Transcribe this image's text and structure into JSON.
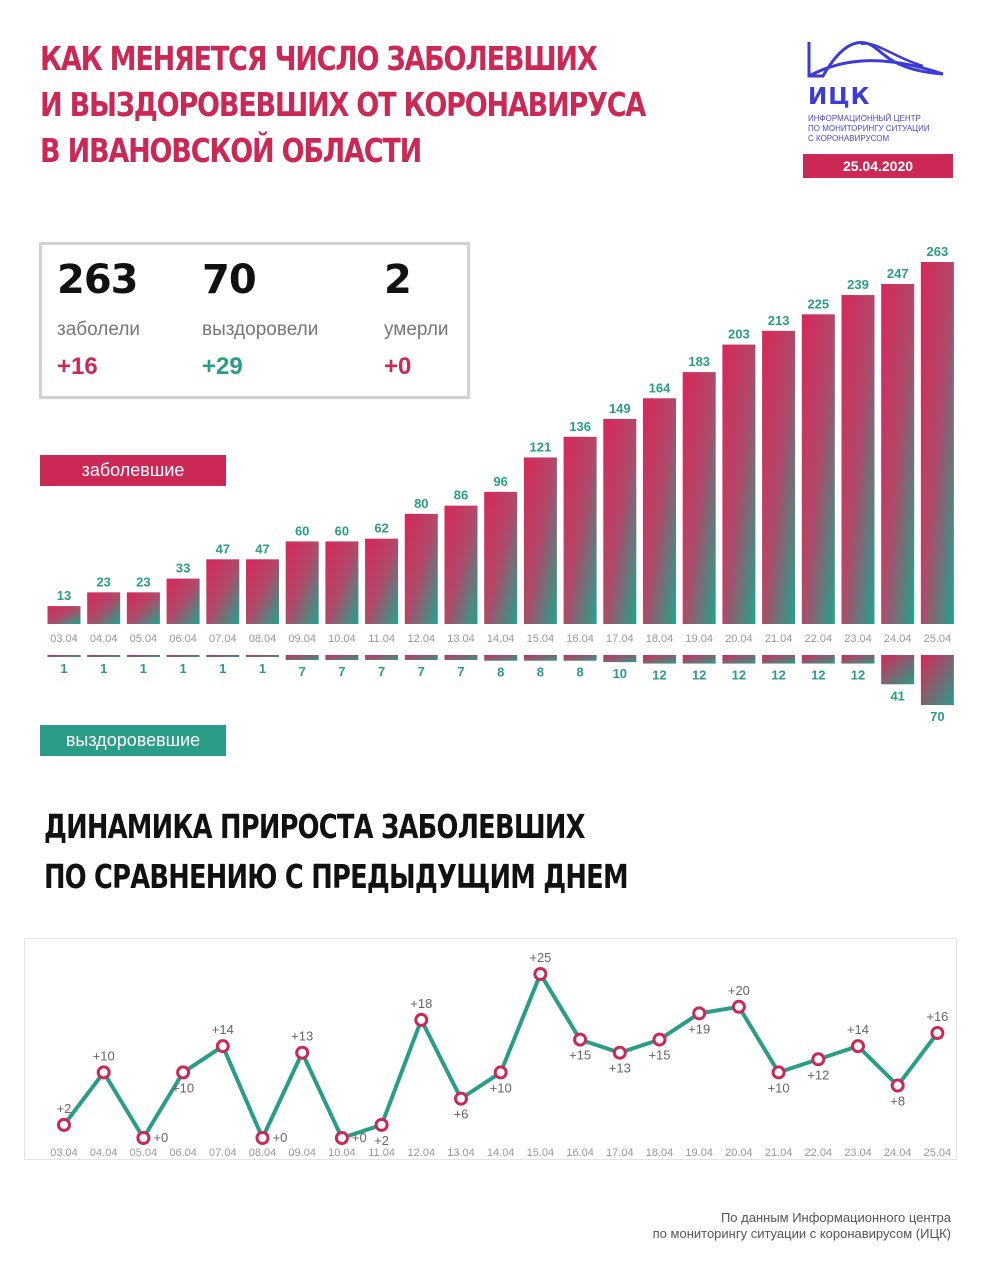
{
  "header": {
    "title_lines": [
      "КАК МЕНЯЕТСЯ ЧИСЛО ЗАБОЛЕВШИХ",
      "И ВЫЗДОРОВЕВШИХ ОТ КОРОНАВИРУСА",
      "В ИВАНОВСКОЙ ОБЛАСТИ"
    ]
  },
  "logo": {
    "abbr": "ИЦК",
    "desc_lines": [
      "ИНФОРМАЦИОННЫЙ ЦЕНТР",
      "ПО МОНИТОРИНГУ СИТУАЦИИ",
      "С КОРОНАВИРУСОМ"
    ],
    "date": "25.04.2020"
  },
  "stats": [
    {
      "value": "263",
      "label": "заболели",
      "delta": "+16"
    },
    {
      "value": "70",
      "label": "выздоровели",
      "delta": "+29"
    },
    {
      "value": "2",
      "label": "умерли",
      "delta": "+0"
    }
  ],
  "legend": {
    "sick": "заболевшие",
    "recovered": "выздоровевшие"
  },
  "subtitle_lines": [
    "ДИНАМИКА ПРИРОСТА ЗАБОЛЕВШИХ",
    "ПО СРАВНЕНИЮ С ПРЕДЫДУЩИМ ДНЕМ"
  ],
  "source_lines": [
    "По данным Информационного центра",
    "по мониторингу ситуации с коронавирусом (ИЦК)"
  ],
  "colors": {
    "accent": "#cc2856",
    "teal": "#2a9d88",
    "logo": "#3d3bd8"
  },
  "chart_data": [
    {
      "type": "bar",
      "categories": [
        "03.04",
        "04.04",
        "05.04",
        "06.04",
        "07.04",
        "08.04",
        "09.04",
        "10.04",
        "11.04",
        "12.04",
        "13.04",
        "14.04",
        "15.04",
        "16.04",
        "17.04",
        "18.04",
        "19.04",
        "20.04",
        "21.04",
        "22.04",
        "23.04",
        "24.04",
        "25.04"
      ],
      "series": [
        {
          "name": "заболевшие",
          "values": [
            13,
            23,
            23,
            33,
            47,
            47,
            60,
            60,
            62,
            80,
            86,
            96,
            121,
            136,
            149,
            164,
            183,
            203,
            213,
            225,
            239,
            247,
            263
          ]
        },
        {
          "name": "выздоровевшие",
          "values": [
            1,
            1,
            1,
            1,
            1,
            1,
            7,
            7,
            7,
            7,
            7,
            8,
            8,
            8,
            10,
            12,
            12,
            12,
            12,
            12,
            12,
            41,
            70
          ]
        }
      ],
      "ylim": [
        0,
        263
      ]
    },
    {
      "type": "line",
      "categories": [
        "03.04",
        "04.04",
        "05.04",
        "06.04",
        "07.04",
        "08.04",
        "09.04",
        "10.04",
        "11.04",
        "12.04",
        "13.04",
        "14.04",
        "15.04",
        "16.04",
        "17.04",
        "18.04",
        "19.04",
        "20.04",
        "21.04",
        "22.04",
        "23.04",
        "24.04",
        "25.04"
      ],
      "values": [
        2,
        10,
        0,
        10,
        14,
        0,
        13,
        0,
        2,
        18,
        6,
        10,
        25,
        15,
        13,
        15,
        19,
        20,
        10,
        12,
        14,
        8,
        16
      ],
      "labels": [
        "+2",
        "+10",
        "+0",
        "+10",
        "+14",
        "+0",
        "+13",
        "+0",
        "+2",
        "+18",
        "+6",
        "+10",
        "+25",
        "+15",
        "+13",
        "+15",
        "+19",
        "+20",
        "+10",
        "+12",
        "+14",
        "+8",
        "+16"
      ],
      "ylim": [
        0,
        25
      ]
    }
  ]
}
